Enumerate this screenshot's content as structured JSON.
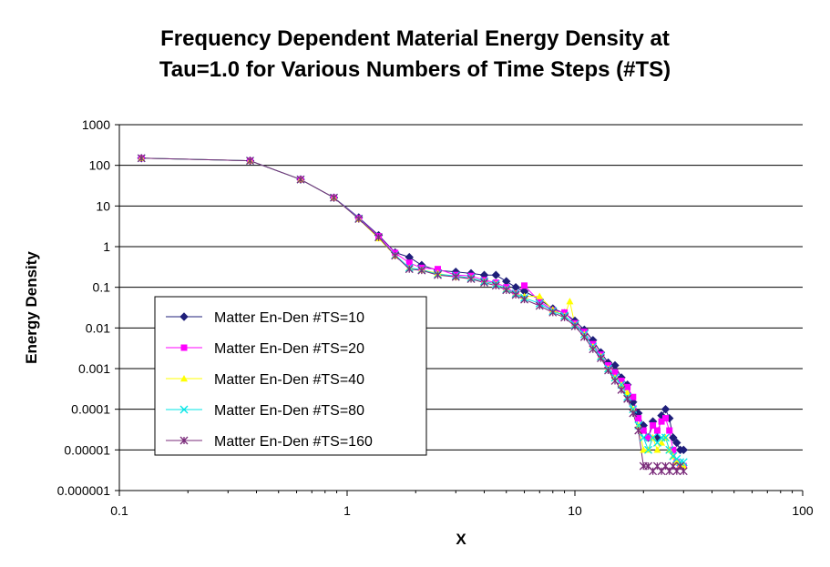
{
  "chart_data": {
    "type": "line",
    "title_line1": "Frequency Dependent Material Energy Density at",
    "title_line2": "Tau=1.0 for Various Numbers of Time Steps (#TS)",
    "xlabel": "X",
    "ylabel": "Energy Density",
    "x_scale": "log",
    "y_scale": "log",
    "xlim": [
      0.1,
      100
    ],
    "ylim": [
      1e-06,
      1000
    ],
    "x_ticks": [
      "0.1",
      "1",
      "10",
      "100"
    ],
    "y_ticks": [
      "1000",
      "100",
      "10",
      "1",
      "0.1",
      "0.01",
      "0.001",
      "0.0001",
      "0.00001",
      "0.000001"
    ],
    "grid": "horizontal major gridlines",
    "legend_placement": "middle-left",
    "series": [
      {
        "name": "Matter En-Den #TS=10",
        "color": "#1f1f7a",
        "marker": "diamond",
        "points": [
          [
            0.125,
            150
          ],
          [
            0.375,
            130
          ],
          [
            0.625,
            45
          ],
          [
            0.875,
            16
          ],
          [
            1.125,
            5.2
          ],
          [
            1.375,
            1.9
          ],
          [
            1.625,
            0.72
          ],
          [
            1.875,
            0.55
          ],
          [
            2.125,
            0.35
          ],
          [
            2.5,
            0.26
          ],
          [
            3,
            0.24
          ],
          [
            3.5,
            0.22
          ],
          [
            4,
            0.2
          ],
          [
            4.5,
            0.2
          ],
          [
            5,
            0.14
          ],
          [
            5.5,
            0.1
          ],
          [
            6,
            0.08
          ],
          [
            7,
            0.05
          ],
          [
            8,
            0.03
          ],
          [
            9,
            0.023
          ],
          [
            10,
            0.015
          ],
          [
            11,
            0.009
          ],
          [
            12,
            0.005
          ],
          [
            13,
            0.0025
          ],
          [
            14,
            0.0014
          ],
          [
            15,
            0.0012
          ],
          [
            16,
            0.0006
          ],
          [
            17,
            0.0004
          ],
          [
            18,
            0.00015
          ],
          [
            19,
            8e-05
          ],
          [
            20,
            4e-05
          ],
          [
            21,
            2e-05
          ],
          [
            22,
            5e-05
          ],
          [
            23,
            2e-05
          ],
          [
            24,
            7e-05
          ],
          [
            25,
            0.0001
          ],
          [
            26,
            6e-05
          ],
          [
            27,
            2e-05
          ],
          [
            28,
            1.5e-05
          ],
          [
            29,
            1e-05
          ],
          [
            30,
            1e-05
          ]
        ]
      },
      {
        "name": "Matter En-Den #TS=20",
        "color": "#ff00ff",
        "marker": "square",
        "points": [
          [
            0.125,
            150
          ],
          [
            0.375,
            130
          ],
          [
            0.625,
            45
          ],
          [
            0.875,
            16
          ],
          [
            1.125,
            5
          ],
          [
            1.375,
            1.8
          ],
          [
            1.625,
            0.7
          ],
          [
            1.875,
            0.4
          ],
          [
            2.125,
            0.3
          ],
          [
            2.5,
            0.28
          ],
          [
            3,
            0.2
          ],
          [
            3.5,
            0.19
          ],
          [
            4,
            0.15
          ],
          [
            4.5,
            0.13
          ],
          [
            5,
            0.1
          ],
          [
            5.5,
            0.07
          ],
          [
            6,
            0.11
          ],
          [
            7,
            0.045
          ],
          [
            8,
            0.027
          ],
          [
            9,
            0.024
          ],
          [
            10,
            0.013
          ],
          [
            11,
            0.008
          ],
          [
            12,
            0.004
          ],
          [
            13,
            0.0022
          ],
          [
            14,
            0.0012
          ],
          [
            15,
            0.0008
          ],
          [
            16,
            0.0005
          ],
          [
            17,
            0.00035
          ],
          [
            18,
            0.0002
          ],
          [
            19,
            6e-05
          ],
          [
            20,
            3e-05
          ],
          [
            21,
            2e-05
          ],
          [
            22,
            4e-05
          ],
          [
            23,
            3e-05
          ],
          [
            24,
            5e-05
          ],
          [
            25,
            6e-05
          ],
          [
            26,
            3e-05
          ],
          [
            27,
            1e-05
          ],
          [
            28,
            5e-06
          ],
          [
            29,
            4e-06
          ],
          [
            30,
            4e-06
          ]
        ]
      },
      {
        "name": "Matter En-Den #TS=40",
        "color": "#ffff00",
        "marker": "triangle",
        "points": [
          [
            0.125,
            150
          ],
          [
            0.375,
            130
          ],
          [
            0.625,
            45
          ],
          [
            0.875,
            16
          ],
          [
            1.125,
            4.8
          ],
          [
            1.375,
            1.6
          ],
          [
            1.625,
            0.6
          ],
          [
            1.875,
            0.3
          ],
          [
            2.125,
            0.27
          ],
          [
            2.5,
            0.22
          ],
          [
            3,
            0.18
          ],
          [
            3.5,
            0.17
          ],
          [
            4,
            0.14
          ],
          [
            4.5,
            0.12
          ],
          [
            5,
            0.09
          ],
          [
            5.5,
            0.07
          ],
          [
            6,
            0.06
          ],
          [
            7,
            0.06
          ],
          [
            8,
            0.028
          ],
          [
            9,
            0.02
          ],
          [
            9.5,
            0.045
          ],
          [
            10,
            0.012
          ],
          [
            11,
            0.007
          ],
          [
            12,
            0.0035
          ],
          [
            13,
            0.002
          ],
          [
            14,
            0.001
          ],
          [
            15,
            0.0006
          ],
          [
            16,
            0.0004
          ],
          [
            17,
            0.00025
          ],
          [
            18,
            0.0001
          ],
          [
            19,
            4e-05
          ],
          [
            20,
            1e-05
          ],
          [
            21,
            1e-05
          ],
          [
            22,
            2e-05
          ],
          [
            23,
            1e-05
          ],
          [
            24,
            1.5e-05
          ],
          [
            25,
            2e-05
          ],
          [
            26,
            1e-05
          ],
          [
            27,
            7e-06
          ],
          [
            28,
            5e-06
          ],
          [
            29,
            4e-06
          ],
          [
            30,
            4e-06
          ]
        ]
      },
      {
        "name": "Matter En-Den #TS=80",
        "color": "#00e5e5",
        "marker": "x",
        "points": [
          [
            0.125,
            150
          ],
          [
            0.375,
            130
          ],
          [
            0.625,
            45
          ],
          [
            0.875,
            16
          ],
          [
            1.125,
            4.9
          ],
          [
            1.375,
            1.7
          ],
          [
            1.625,
            0.62
          ],
          [
            1.875,
            0.3
          ],
          [
            2.125,
            0.27
          ],
          [
            2.5,
            0.21
          ],
          [
            3,
            0.19
          ],
          [
            3.5,
            0.17
          ],
          [
            4,
            0.14
          ],
          [
            4.5,
            0.12
          ],
          [
            5,
            0.09
          ],
          [
            5.5,
            0.07
          ],
          [
            6,
            0.055
          ],
          [
            7,
            0.04
          ],
          [
            8,
            0.026
          ],
          [
            9,
            0.02
          ],
          [
            10,
            0.012
          ],
          [
            11,
            0.007
          ],
          [
            12,
            0.0035
          ],
          [
            13,
            0.002
          ],
          [
            14,
            0.001
          ],
          [
            15,
            0.0006
          ],
          [
            16,
            0.0004
          ],
          [
            17,
            0.0002
          ],
          [
            18,
            0.0001
          ],
          [
            19,
            4e-05
          ],
          [
            20,
            2e-05
          ],
          [
            21,
            1e-05
          ],
          [
            22,
            2e-05
          ],
          [
            23,
            1.5e-05
          ],
          [
            24,
            2e-05
          ],
          [
            25,
            2e-05
          ],
          [
            26,
            1e-05
          ],
          [
            27,
            7e-06
          ],
          [
            28,
            6e-06
          ],
          [
            29,
            5e-06
          ],
          [
            30,
            5e-06
          ]
        ]
      },
      {
        "name": "Matter En-Den #TS=160",
        "color": "#7a2b7a",
        "marker": "star",
        "points": [
          [
            0.125,
            150
          ],
          [
            0.375,
            130
          ],
          [
            0.625,
            45
          ],
          [
            0.875,
            16
          ],
          [
            1.125,
            4.8
          ],
          [
            1.375,
            1.7
          ],
          [
            1.625,
            0.6
          ],
          [
            1.875,
            0.28
          ],
          [
            2.125,
            0.26
          ],
          [
            2.5,
            0.2
          ],
          [
            3,
            0.18
          ],
          [
            3.5,
            0.16
          ],
          [
            4,
            0.13
          ],
          [
            4.5,
            0.11
          ],
          [
            5,
            0.085
          ],
          [
            5.5,
            0.065
          ],
          [
            6,
            0.05
          ],
          [
            7,
            0.035
          ],
          [
            8,
            0.024
          ],
          [
            9,
            0.018
          ],
          [
            10,
            0.011
          ],
          [
            11,
            0.006
          ],
          [
            12,
            0.003
          ],
          [
            13,
            0.0018
          ],
          [
            14,
            0.0009
          ],
          [
            15,
            0.0005
          ],
          [
            16,
            0.0003
          ],
          [
            17,
            0.00018
          ],
          [
            18,
            8e-05
          ],
          [
            19,
            3e-05
          ],
          [
            20,
            4e-06
          ],
          [
            21,
            4e-06
          ],
          [
            22,
            3e-06
          ],
          [
            23,
            4e-06
          ],
          [
            24,
            3e-06
          ],
          [
            25,
            4e-06
          ],
          [
            26,
            3e-06
          ],
          [
            27,
            4e-06
          ],
          [
            28,
            3e-06
          ],
          [
            29,
            4e-06
          ],
          [
            30,
            3e-06
          ]
        ]
      }
    ]
  }
}
